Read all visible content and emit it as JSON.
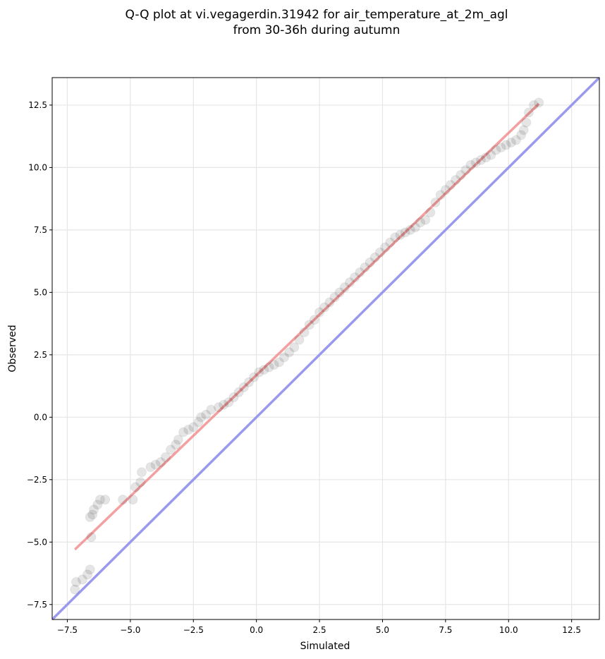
{
  "chart_data": {
    "type": "scatter",
    "title_line1": "Q-Q plot at vi.vegagerdin.31942 for air_temperature_at_2m_agl",
    "title_line2": "from 30-36h during autumn",
    "xlabel": "Simulated",
    "ylabel": "Observed",
    "xlim": [
      -8.1,
      13.6
    ],
    "ylim": [
      -8.1,
      13.6
    ],
    "xticks": [
      -7.5,
      -5.0,
      -2.5,
      0.0,
      2.5,
      5.0,
      7.5,
      10.0,
      12.5
    ],
    "yticks": [
      -7.5,
      -5.0,
      -2.5,
      0.0,
      2.5,
      5.0,
      7.5,
      10.0,
      12.5
    ],
    "xtick_labels": [
      "−7.5",
      "−5.0",
      "−2.5",
      "0.0",
      "2.5",
      "5.0",
      "7.5",
      "10.0",
      "12.5"
    ],
    "ytick_labels": [
      "−7.5",
      "−5.0",
      "−2.5",
      "0.0",
      "2.5",
      "5.0",
      "7.5",
      "10.0",
      "12.5"
    ],
    "grid": true,
    "quantile_points": {
      "x": [
        -7.2,
        -7.15,
        -6.9,
        -6.7,
        -6.6,
        -6.55,
        -6.6,
        -6.5,
        -6.45,
        -6.3,
        -6.2,
        -6.0,
        -5.3,
        -4.9,
        -4.8,
        -4.6,
        -4.55,
        -4.2,
        -4.0,
        -3.8,
        -3.6,
        -3.4,
        -3.2,
        -3.1,
        -2.9,
        -2.7,
        -2.5,
        -2.3,
        -2.2,
        -2.0,
        -1.8,
        -1.5,
        -1.3,
        -1.1,
        -0.9,
        -0.7,
        -0.5,
        -0.3,
        -0.1,
        0.1,
        0.3,
        0.5,
        0.7,
        0.9,
        1.1,
        1.3,
        1.5,
        1.7,
        1.9,
        2.1,
        2.3,
        2.5,
        2.7,
        2.9,
        3.1,
        3.3,
        3.5,
        3.7,
        3.9,
        4.1,
        4.3,
        4.5,
        4.7,
        4.9,
        5.1,
        5.3,
        5.5,
        5.7,
        5.9,
        6.1,
        6.3,
        6.5,
        6.7,
        6.9,
        7.1,
        7.3,
        7.5,
        7.7,
        7.9,
        8.1,
        8.3,
        8.5,
        8.7,
        8.9,
        9.1,
        9.3,
        9.5,
        9.7,
        9.9,
        10.1,
        10.3,
        10.5,
        10.6,
        10.7,
        10.8,
        11.0,
        11.2
      ],
      "y": [
        -6.9,
        -6.6,
        -6.5,
        -6.3,
        -6.1,
        -4.8,
        -4.0,
        -3.9,
        -3.7,
        -3.5,
        -3.3,
        -3.3,
        -3.3,
        -3.3,
        -2.8,
        -2.6,
        -2.2,
        -2.0,
        -1.9,
        -1.8,
        -1.6,
        -1.3,
        -1.1,
        -0.9,
        -0.6,
        -0.5,
        -0.4,
        -0.2,
        0.0,
        0.1,
        0.3,
        0.4,
        0.5,
        0.6,
        0.8,
        1.0,
        1.2,
        1.4,
        1.6,
        1.8,
        1.9,
        2.0,
        2.1,
        2.2,
        2.4,
        2.6,
        2.8,
        3.1,
        3.4,
        3.7,
        3.9,
        4.2,
        4.4,
        4.6,
        4.8,
        5.0,
        5.2,
        5.4,
        5.6,
        5.8,
        6.0,
        6.2,
        6.4,
        6.6,
        6.8,
        7.0,
        7.2,
        7.3,
        7.4,
        7.5,
        7.6,
        7.8,
        7.9,
        8.2,
        8.6,
        8.9,
        9.1,
        9.3,
        9.5,
        9.7,
        9.9,
        10.1,
        10.2,
        10.3,
        10.4,
        10.5,
        10.7,
        10.8,
        10.9,
        11.0,
        11.1,
        11.3,
        11.5,
        11.8,
        12.2,
        12.5,
        12.6
      ]
    },
    "fit_line": {
      "x": [
        -7.2,
        11.2
      ],
      "y": [
        -5.3,
        12.55
      ],
      "color": "#f08080"
    },
    "identity_line": {
      "x": [
        -8.1,
        13.6
      ],
      "y": [
        -8.1,
        13.6
      ],
      "color": "#9999ee"
    },
    "point_color": "#000000"
  }
}
